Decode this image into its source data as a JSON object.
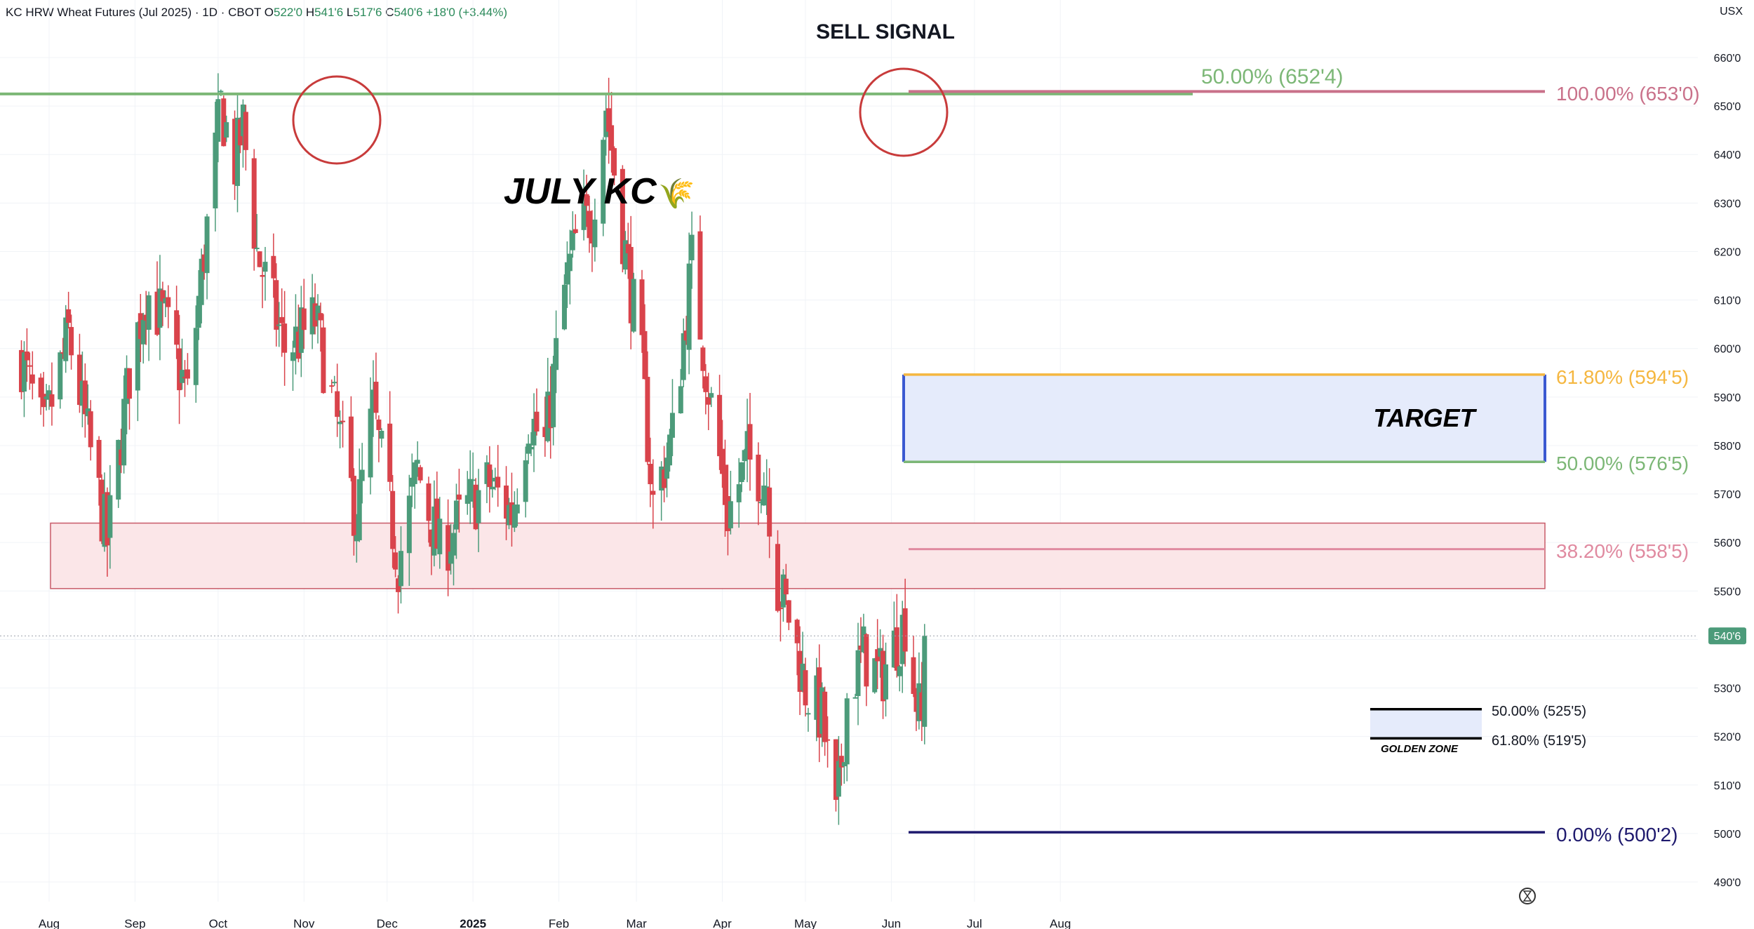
{
  "header": {
    "symbol": "KC HRW Wheat Futures (Jul 2025) · 1D · CBOT",
    "o_label": "O",
    "o_value": "522'0",
    "h_label": "H",
    "h_value": "541'6",
    "l_label": "L",
    "l_value": "517'6",
    "c_label": "C",
    "c_value": "540'6",
    "change": "+18'0 (+3.44%)",
    "currency": "USX"
  },
  "annotations": {
    "sell_signal": "SELL SIGNAL",
    "july_kc": "JULY KC",
    "july_kc_emoji": "🌾",
    "target": "TARGET",
    "golden_zone": "GOLDEN ZONE"
  },
  "price_tag": "540'6",
  "colors": {
    "up": "#4c9b7a",
    "down": "#d9434b",
    "green_line": "#7cb776",
    "pink_line": "#c9718a",
    "orange_line": "#f5b740",
    "navy_line": "#1f1a6e",
    "target_border": "#3b59d1",
    "target_fill": "#e5ebfb",
    "support_fill": "#fbe6e8",
    "support_border": "#c85a68",
    "circle": "#c83b3b"
  },
  "fib_labels": [
    {
      "text": "50.00% (652'4)",
      "price": 652.5,
      "color": "#7cb776"
    },
    {
      "text": "100.00% (653'0)",
      "price": 653.0,
      "color": "#c9718a"
    },
    {
      "text": "61.80% (594'5)",
      "price": 594.625,
      "color": "#f5b740"
    },
    {
      "text": "50.00% (576'5)",
      "price": 576.625,
      "color": "#7cb776"
    },
    {
      "text": "38.20% (558'5)",
      "price": 558.625,
      "color": "#e08aa0"
    },
    {
      "text": "0.00% (500'2)",
      "price": 500.25,
      "color": "#1f1a6e"
    },
    {
      "text": "50.00% (525'5)",
      "price": 525.625,
      "color": "#131722"
    },
    {
      "text": "61.80% (519'5)",
      "price": 519.625,
      "color": "#131722"
    }
  ],
  "chart_data": {
    "type": "candlestick",
    "title": "KC HRW Wheat Futures (Jul 2025) · 1D · CBOT",
    "ylim": [
      487,
      665
    ],
    "y_ticks": [
      "660'0",
      "650'0",
      "640'0",
      "630'0",
      "620'0",
      "610'0",
      "600'0",
      "590'0",
      "580'0",
      "570'0",
      "560'0",
      "550'0",
      "540'0",
      "530'0",
      "520'0",
      "510'0",
      "500'0",
      "490'0"
    ],
    "y_tick_values": [
      660,
      650,
      640,
      630,
      620,
      610,
      600,
      590,
      580,
      570,
      560,
      550,
      540,
      530,
      520,
      510,
      500,
      490
    ],
    "x_ticks": [
      "Aug",
      "Sep",
      "Oct",
      "Nov",
      "Dec",
      "2025",
      "Feb",
      "Mar",
      "Apr",
      "May",
      "Jun",
      "Jul",
      "Aug"
    ],
    "x_tick_dates": [
      "2024-08-01",
      "2024-09-01",
      "2024-10-01",
      "2024-11-01",
      "2024-12-01",
      "2025-01-01",
      "2025-02-01",
      "2025-03-01",
      "2025-04-01",
      "2025-05-01",
      "2025-06-01",
      "2025-07-01",
      "2025-08-01"
    ],
    "last_price": 540.75,
    "ohlc_keypoints": [
      {
        "date": "2024-07-22",
        "close": 598
      },
      {
        "date": "2024-07-30",
        "close": 582
      },
      {
        "date": "2024-08-08",
        "close": 603
      },
      {
        "date": "2024-08-22",
        "close": 560
      },
      {
        "date": "2024-08-30",
        "close": 595
      },
      {
        "date": "2024-09-05",
        "close": 612
      },
      {
        "date": "2024-09-12",
        "close": 605
      },
      {
        "date": "2024-09-20",
        "close": 590
      },
      {
        "date": "2024-09-30",
        "close": 640
      },
      {
        "date": "2024-10-02",
        "close": 650
      },
      {
        "date": "2024-10-07",
        "close": 638
      },
      {
        "date": "2024-10-10",
        "close": 646
      },
      {
        "date": "2024-10-15",
        "close": 620
      },
      {
        "date": "2024-10-25",
        "close": 600
      },
      {
        "date": "2024-10-30",
        "close": 602
      },
      {
        "date": "2024-11-05",
        "close": 606
      },
      {
        "date": "2024-11-20",
        "close": 565
      },
      {
        "date": "2024-11-26",
        "close": 587
      },
      {
        "date": "2024-12-05",
        "close": 556
      },
      {
        "date": "2024-12-12",
        "close": 575
      },
      {
        "date": "2024-12-20",
        "close": 558
      },
      {
        "date": "2024-12-31",
        "close": 568
      },
      {
        "date": "2025-01-07",
        "close": 572
      },
      {
        "date": "2025-01-15",
        "close": 566
      },
      {
        "date": "2025-01-21",
        "close": 586
      },
      {
        "date": "2025-01-27",
        "close": 580
      },
      {
        "date": "2025-02-03",
        "close": 612
      },
      {
        "date": "2025-02-07",
        "close": 622
      },
      {
        "date": "2025-02-13",
        "close": 628
      },
      {
        "date": "2025-02-18",
        "close": 650
      },
      {
        "date": "2025-02-24",
        "close": 624
      },
      {
        "date": "2025-03-03",
        "close": 596
      },
      {
        "date": "2025-03-07",
        "close": 568
      },
      {
        "date": "2025-03-14",
        "close": 582
      },
      {
        "date": "2025-03-21",
        "close": 618
      },
      {
        "date": "2025-03-27",
        "close": 592
      },
      {
        "date": "2025-04-03",
        "close": 566
      },
      {
        "date": "2025-04-10",
        "close": 577
      },
      {
        "date": "2025-04-17",
        "close": 573
      },
      {
        "date": "2025-04-21",
        "close": 551
      },
      {
        "date": "2025-04-25",
        "close": 545
      },
      {
        "date": "2025-05-01",
        "close": 530
      },
      {
        "date": "2025-05-07",
        "close": 524
      },
      {
        "date": "2025-05-12",
        "close": 502
      },
      {
        "date": "2025-05-16",
        "close": 528
      },
      {
        "date": "2025-05-22",
        "close": 537
      },
      {
        "date": "2025-05-28",
        "close": 532
      },
      {
        "date": "2025-06-03",
        "close": 540
      },
      {
        "date": "2025-06-06",
        "close": 544
      },
      {
        "date": "2025-06-09",
        "close": 531
      },
      {
        "date": "2025-06-12",
        "close": 522
      },
      {
        "date": "2025-06-13",
        "close": 540.75
      }
    ],
    "fib_retracement_1": {
      "0%": 500.25,
      "38.2%": 558.625,
      "50%": 576.625,
      "61.8%": 594.625,
      "100%": 653.0
    },
    "fib_retracement_2": {
      "50%": 525.625,
      "61.8%": 519.625
    },
    "zones": [
      {
        "name": "TARGET",
        "low": 576.625,
        "high": 594.625
      },
      {
        "name": "support",
        "low": 550.5,
        "high": 564
      },
      {
        "name": "GOLDEN ZONE",
        "low": 519.625,
        "high": 525.625
      }
    ],
    "horizontal_lines": [
      652.5
    ]
  }
}
